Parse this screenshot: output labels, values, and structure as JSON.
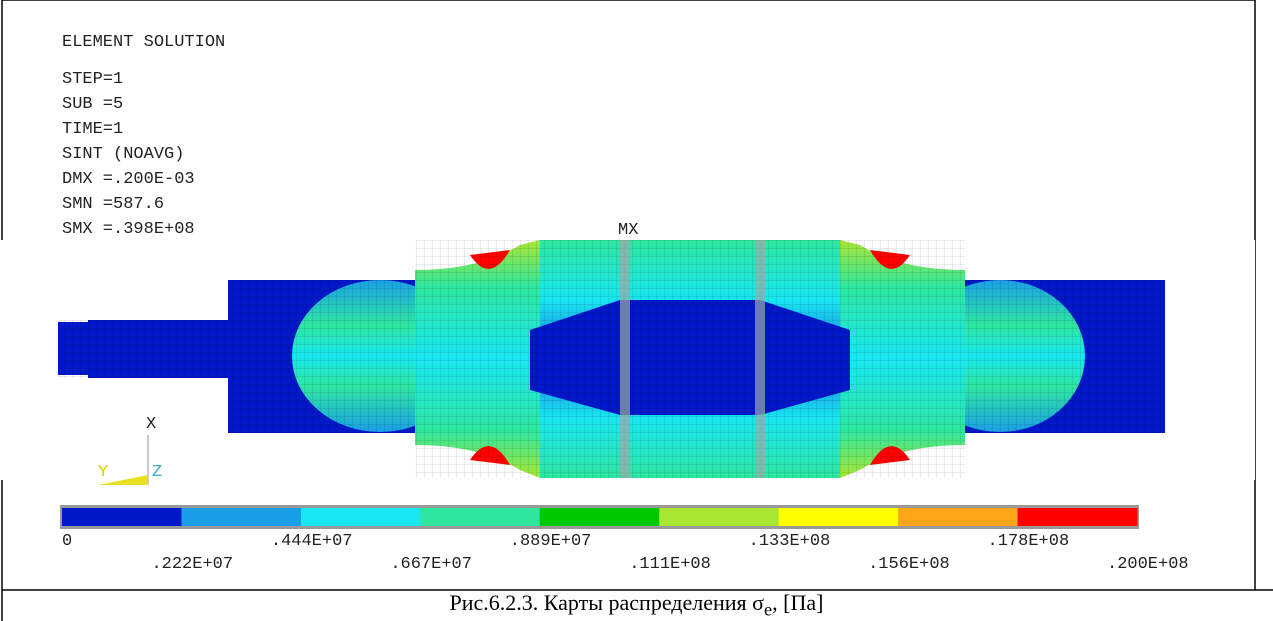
{
  "info": {
    "title": "ELEMENT SOLUTION",
    "lines": [
      "STEP=1",
      "SUB =5",
      "TIME=1",
      "SINT       (NOAVG)",
      "DMX =.200E-03",
      "SMN =587.6",
      "SMX =.398E+08"
    ]
  },
  "marker": "MX",
  "axes": {
    "x": "X",
    "y": "Y",
    "z": "Z"
  },
  "legend": {
    "colors": [
      "#0018c8",
      "#1a9ee6",
      "#18e6f0",
      "#2ee6a0",
      "#00c800",
      "#a8e632",
      "#ffff00",
      "#ffa51a",
      "#ff0000"
    ],
    "labels": [
      "0",
      ".222E+07",
      ".444E+07",
      ".667E+07",
      ".889E+07",
      ".111E+08",
      ".133E+08",
      ".156E+08",
      ".178E+08",
      ".200E+08"
    ]
  },
  "caption": {
    "text": "Рис.6.2.3. Карты распределения σ",
    "sub": "e",
    "tail": ", [Па]"
  }
}
